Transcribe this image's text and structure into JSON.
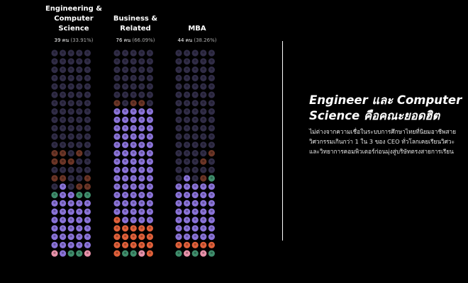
{
  "chart_data": {
    "type": "icon-grid",
    "columns": [
      {
        "title": "Engineering &\nComputer\nScience",
        "count": "39 คน",
        "percent": "(33.91%)",
        "value": 39,
        "percent_value": 33.91
      },
      {
        "title": "Business &\nRelated",
        "count": "76 คน",
        "percent": "(66.09%)",
        "value": 76,
        "percent_value": 66.09
      },
      {
        "title": "MBA",
        "count": "44 คน",
        "percent": "(38.26%)",
        "value": 44,
        "percent_value": 38.26
      }
    ],
    "colors": {
      "highlight": "#8a73d8",
      "dim": "#302c46",
      "orange": "#e0603a",
      "pink": "#e892aa",
      "green": "#3f8e6c",
      "brown": "#6b3526"
    },
    "rows": 25,
    "cells_per_row": 5,
    "fills": [
      [
        "ddddd",
        "ddddd",
        "ddddd",
        "ddddd",
        "ddddd",
        "ddddd",
        "ddddd",
        "ddddd",
        "ddddd",
        "ddddd",
        "ddddd",
        "ddddd",
        "bbdbd",
        "bbbdd",
        "ddddd",
        "bbddb",
        "dhdbb",
        "ghhgg",
        "hhhhh",
        "hhhhh",
        "hhhhh",
        "hhhhh",
        "hhhhh",
        "hhhhh",
        "phggp"
      ],
      [
        "ddddd",
        "ddddd",
        "ddddd",
        "ddddd",
        "ddddd",
        "ddddd",
        "bdbbd",
        "hhhhh",
        "hhhhh",
        "hhhhh",
        "hhhhh",
        "hhhhh",
        "hhhhh",
        "hhhhh",
        "hhhhh",
        "hhhhh",
        "hhhhh",
        "hhhhh",
        "hhhhh",
        "hhhhh",
        "ohhhh",
        "ooooo",
        "ooooo",
        "ooooo",
        "oggpo"
      ],
      [
        "ddddd",
        "ddddd",
        "ddddd",
        "ddddd",
        "ddddd",
        "ddddd",
        "ddddd",
        "ddddd",
        "ddddd",
        "ddddd",
        "ddddd",
        "ddddd",
        "ddddb",
        "dddbd",
        "ddddd",
        "dhdbg",
        "hhhhh",
        "hhhhh",
        "hhhhh",
        "hhhhh",
        "hhhhh",
        "hhhhh",
        "hhhhh",
        "ooooo",
        "gpgpg"
      ]
    ]
  },
  "story": {
    "headline": "Engineer และ Computer\nScience คือคณะยอดฮิต",
    "body": "ไม่ต่างจากความเชื่อในระบบการศึกษาไทยที่นิยมอาชีพสายวิศวกรรมเกินกว่า 1 ใน 3 ของ CEO ทั่วโลกเคยเรียนวิศวะและวิทยาการคอมพิวเตอร์ก่อนมุ่งสู่บริษัทตรงสายการเรียน"
  }
}
